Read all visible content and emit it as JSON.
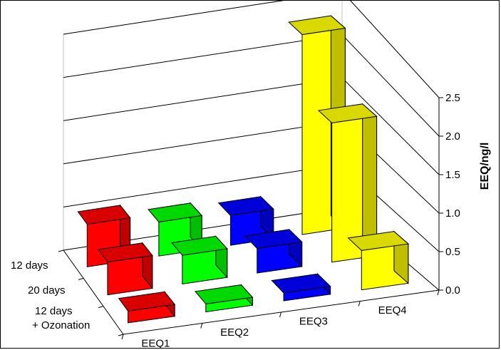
{
  "chart_data": {
    "type": "bar",
    "subtype": "3d-bar",
    "categories": [
      "EEQ1",
      "EEQ2",
      "EEQ3",
      "EEQ4"
    ],
    "series": [
      {
        "name": "12 days",
        "values": [
          0.5,
          0.4,
          0.35,
          2.35
        ]
      },
      {
        "name": "20 days",
        "values": [
          0.4,
          0.35,
          0.3,
          1.7
        ]
      },
      {
        "name": "12 days\n+ Ozonation",
        "values": [
          0.15,
          0.1,
          0.1,
          0.5
        ]
      }
    ],
    "series_labels": [
      "12 days",
      "20 days",
      "12 days",
      "+ Ozonation"
    ],
    "category_colors": [
      "#ff0000",
      "#00ff00",
      "#0000ff",
      "#ffff00"
    ],
    "ylabel": "EEQ/ng/l",
    "ylim": [
      0,
      2.5
    ],
    "yticks": [
      "0.0",
      "0.5",
      "1.0",
      "1.5",
      "2.0",
      "2.5"
    ],
    "grid": true,
    "legend": "none"
  }
}
